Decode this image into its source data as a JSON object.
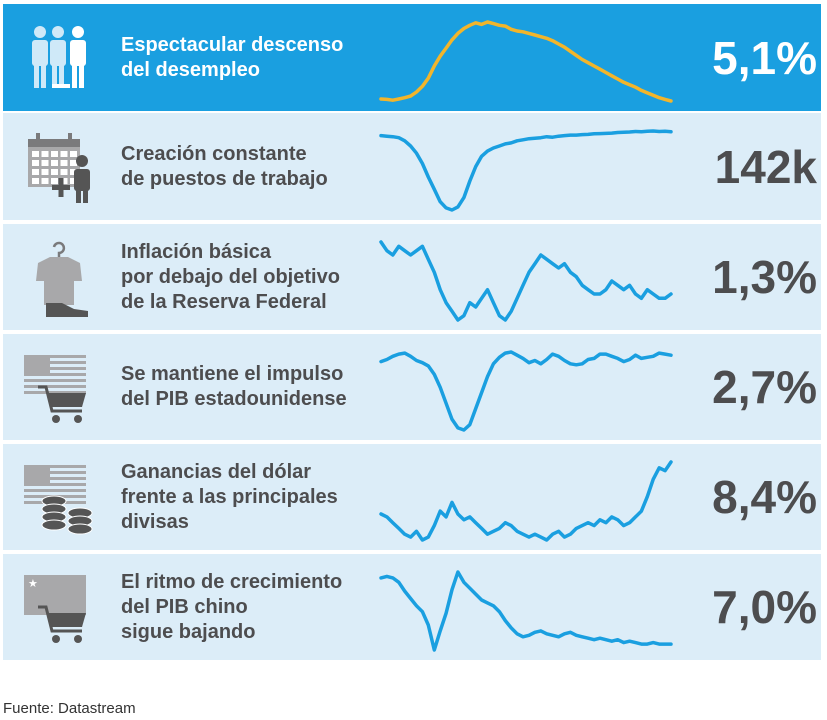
{
  "source": "Fuente: Datastream",
  "chart_data": [
    {
      "type": "line",
      "label": "Espectacular descenso\ndel desempleo",
      "value": "5,1%",
      "highlight": true,
      "line_color": "#f2b52b",
      "series": [
        {
          "values": [
            9.9,
            9.8,
            9.6,
            9.9,
            10.2,
            10.6,
            11.6,
            13.0,
            15.0,
            18.0,
            20.4,
            22.4,
            24.4,
            26.0,
            27.2,
            28.0,
            28.6,
            28.2,
            28.8,
            28.4,
            28.0,
            27.8,
            27.0,
            26.6,
            26.4,
            26.0,
            25.6,
            25.2,
            24.8,
            24.2,
            23.4,
            22.6,
            21.6,
            20.6,
            19.6,
            18.8,
            18.0,
            17.2,
            16.4,
            15.6,
            14.8,
            14.0,
            13.4,
            12.8,
            12.0,
            11.4,
            10.8,
            10.2,
            9.8,
            9.4
          ]
        }
      ]
    },
    {
      "type": "line",
      "label": "Creación constante\nde puestos de trabajo",
      "value": "142k",
      "highlight": false,
      "line_color": "#1a9fe0",
      "series": [
        {
          "values": [
            220,
            215,
            210,
            200,
            170,
            120,
            50,
            -50,
            -180,
            -300,
            -420,
            -480,
            -500,
            -470,
            -380,
            -220,
            -80,
            20,
            70,
            100,
            120,
            140,
            150,
            170,
            180,
            190,
            195,
            200,
            210,
            205,
            215,
            220,
            225,
            225,
            230,
            232,
            238,
            240,
            242,
            245,
            250,
            252,
            255,
            260,
            258,
            262,
            265,
            260,
            262,
            258
          ]
        }
      ]
    },
    {
      "type": "line",
      "label": "Inflación básica\npor debajo del objetivo\nde la Reserva Federal",
      "value": "1,3%",
      "highlight": false,
      "line_color": "#1a9fe0",
      "series": [
        {
          "values": [
            2.3,
            2.1,
            2.0,
            2.2,
            2.1,
            2.0,
            2.1,
            2.2,
            1.9,
            1.6,
            1.2,
            0.9,
            0.7,
            0.5,
            0.6,
            0.9,
            0.8,
            1.0,
            1.2,
            0.9,
            0.6,
            0.5,
            0.7,
            1.0,
            1.3,
            1.6,
            1.8,
            2.0,
            1.9,
            1.8,
            1.7,
            1.8,
            1.6,
            1.5,
            1.3,
            1.2,
            1.1,
            1.1,
            1.2,
            1.4,
            1.3,
            1.2,
            1.3,
            1.1,
            1.0,
            1.2,
            1.1,
            1.0,
            1.0,
            1.1
          ]
        }
      ]
    },
    {
      "type": "line",
      "label": "Se mantiene el impulso\ndel PIB estadounidense",
      "value": "2,7%",
      "highlight": false,
      "line_color": "#1a9fe0",
      "series": [
        {
          "values": [
            2.4,
            2.6,
            2.9,
            3.1,
            3.2,
            2.9,
            2.5,
            2.3,
            2.0,
            1.2,
            0.0,
            -1.5,
            -3.0,
            -3.8,
            -4.0,
            -3.5,
            -2.0,
            -0.5,
            1.0,
            2.2,
            2.8,
            3.2,
            3.3,
            3.0,
            2.7,
            2.3,
            2.5,
            2.2,
            2.6,
            3.1,
            2.9,
            2.5,
            2.2,
            2.1,
            2.2,
            2.6,
            2.7,
            3.1,
            3.1,
            2.9,
            2.7,
            2.4,
            2.6,
            3.0,
            2.7,
            2.8,
            2.9,
            3.2,
            3.1,
            3.0
          ]
        }
      ]
    },
    {
      "type": "line",
      "label": "Ganancias del dólar\nfrente a las principales\ndivisas",
      "value": "8,4%",
      "highlight": false,
      "line_color": "#1a9fe0",
      "series": [
        {
          "values": [
            80,
            79,
            77,
            75,
            73,
            72,
            74,
            71,
            72,
            76,
            81,
            79,
            84,
            80,
            78,
            79,
            77,
            75,
            73,
            74,
            75,
            77,
            76,
            74,
            73,
            72,
            73,
            72,
            71,
            73,
            74,
            72,
            73,
            75,
            76,
            77,
            76,
            78,
            77,
            79,
            78,
            76,
            77,
            79,
            81,
            86,
            92,
            96,
            95,
            98
          ]
        }
      ]
    },
    {
      "type": "line",
      "label": "El ritmo de crecimiento\ndel PIB chino\nsigue bajando",
      "value": "7,0%",
      "highlight": false,
      "line_color": "#1a9fe0",
      "series": [
        {
          "values": [
            11.5,
            11.6,
            11.5,
            11.2,
            10.6,
            10.1,
            9.6,
            9.2,
            8.3,
            6.6,
            7.9,
            9.1,
            10.7,
            11.9,
            11.2,
            10.8,
            10.4,
            10.0,
            9.8,
            9.6,
            9.2,
            8.6,
            8.1,
            7.7,
            7.5,
            7.6,
            7.8,
            7.9,
            7.7,
            7.6,
            7.5,
            7.7,
            7.8,
            7.6,
            7.5,
            7.4,
            7.3,
            7.4,
            7.3,
            7.2,
            7.3,
            7.1,
            7.2,
            7.1,
            7.0,
            7.0,
            7.1,
            7.0,
            7.0,
            7.0
          ]
        }
      ]
    }
  ]
}
